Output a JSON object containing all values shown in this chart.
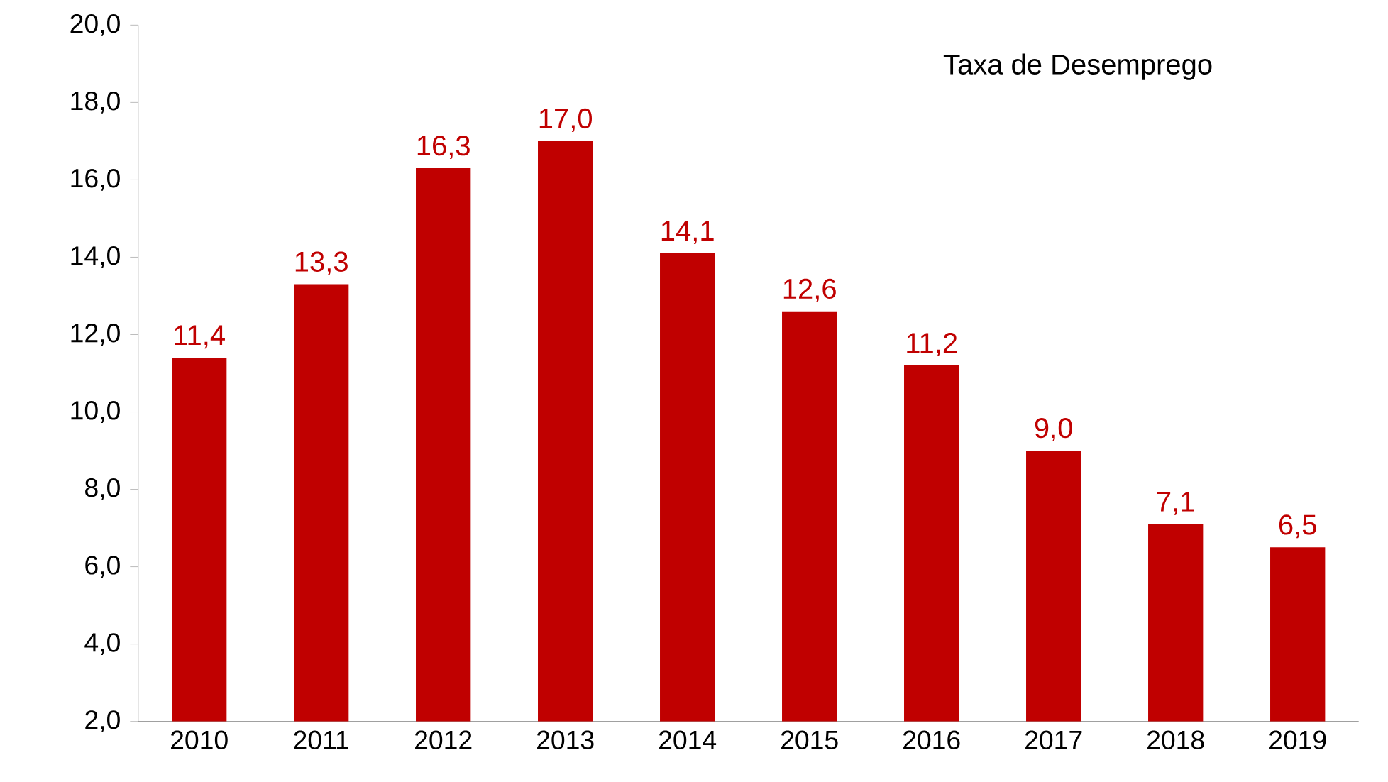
{
  "chart_data": {
    "type": "bar",
    "title": "Taxa de Desemprego",
    "categories": [
      "2010",
      "2011",
      "2012",
      "2013",
      "2014",
      "2015",
      "2016",
      "2017",
      "2018",
      "2019"
    ],
    "values": [
      11.4,
      13.3,
      16.3,
      17.0,
      14.1,
      12.6,
      11.2,
      9.0,
      7.1,
      6.5
    ],
    "value_labels": [
      "11,4",
      "13,3",
      "16,3",
      "17,0",
      "14,1",
      "12,6",
      "11,2",
      "9,0",
      "7,1",
      "6,5"
    ],
    "color": "#c00000",
    "ylim": [
      2,
      20
    ],
    "yticks": [
      {
        "value": 2,
        "label": "2,0"
      },
      {
        "value": 4,
        "label": "4,0"
      },
      {
        "value": 6,
        "label": "6,0"
      },
      {
        "value": 8,
        "label": "8,0"
      },
      {
        "value": 10,
        "label": "10,0"
      },
      {
        "value": 12,
        "label": "12,0"
      },
      {
        "value": 14,
        "label": "14,0"
      },
      {
        "value": 16,
        "label": "16,0"
      },
      {
        "value": 18,
        "label": "18,0"
      },
      {
        "value": 20,
        "label": "20,0"
      }
    ],
    "grid": false
  }
}
